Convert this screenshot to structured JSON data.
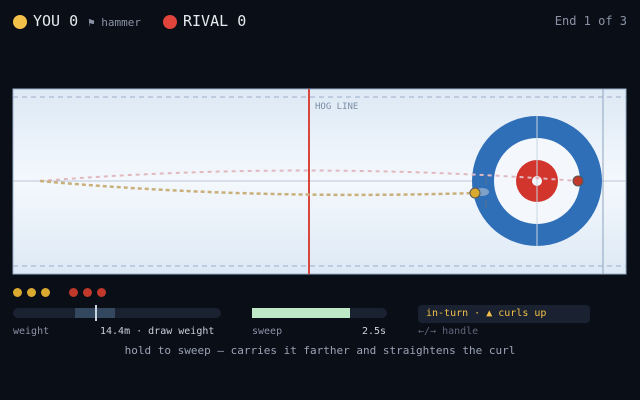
{
  "scoreboard": {
    "players": [
      {
        "name": "YOU",
        "score": 0,
        "note": "⚑ hammer",
        "stones_left": 3
      },
      {
        "name": "RIVAL",
        "score": 0,
        "stones_left": 3
      }
    ],
    "end": "End 1 of 3"
  },
  "sheet": {
    "hog_label": "HOG LINE"
  },
  "controls": {
    "weight": {
      "label": "weight",
      "value": "14.4m · draw weight"
    },
    "sweep": {
      "label": "sweep",
      "value": "2.5s"
    },
    "turn": {
      "label": "in-turn · ▲ curls up",
      "hint": "←/→ handle"
    },
    "help": "hold to sweep — carries it farther and straightens the curl"
  }
}
